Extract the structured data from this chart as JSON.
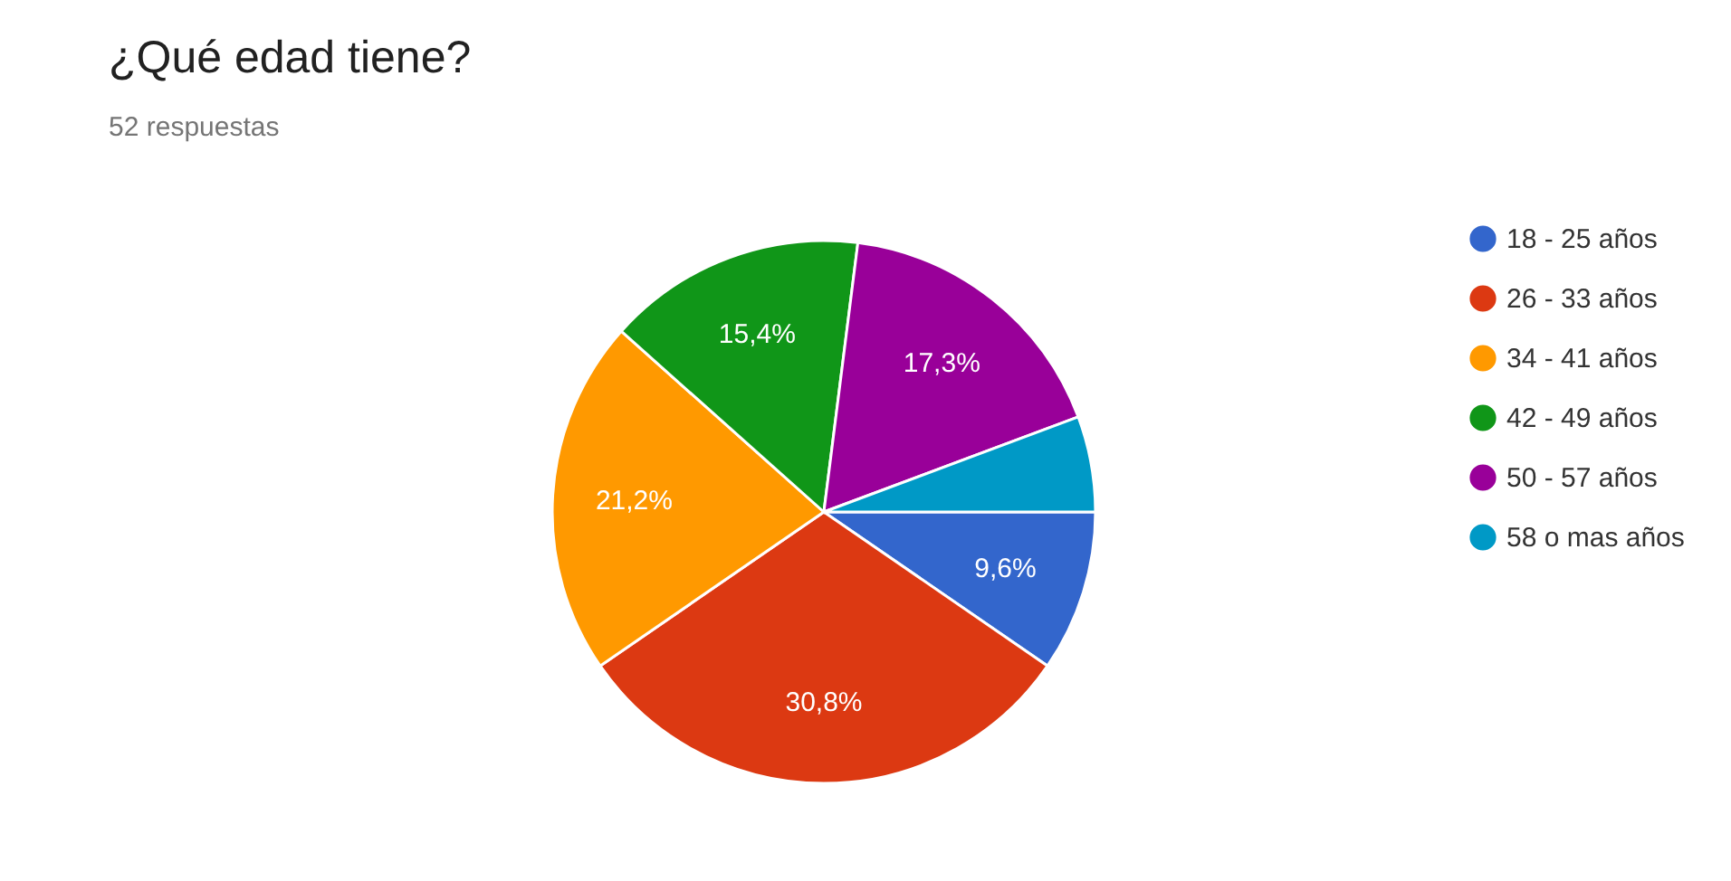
{
  "chart_data": {
    "type": "pie",
    "title": "¿Qué edad tiene?",
    "subtitle": "52 respuestas",
    "categories": [
      "18 - 25 años",
      "26 - 33 años",
      "34 - 41 años",
      "42 - 49 años",
      "50 - 57 años",
      "58 o mas años"
    ],
    "values": [
      9.6,
      30.8,
      21.2,
      15.4,
      17.3,
      5.7
    ],
    "colors": [
      "#3366cc",
      "#dc3912",
      "#ff9900",
      "#109618",
      "#990099",
      "#0099c6"
    ],
    "value_labels": [
      "9,6%",
      "30,8%",
      "21,2%",
      "15,4%",
      "17,3%",
      null
    ],
    "legend": "right"
  }
}
